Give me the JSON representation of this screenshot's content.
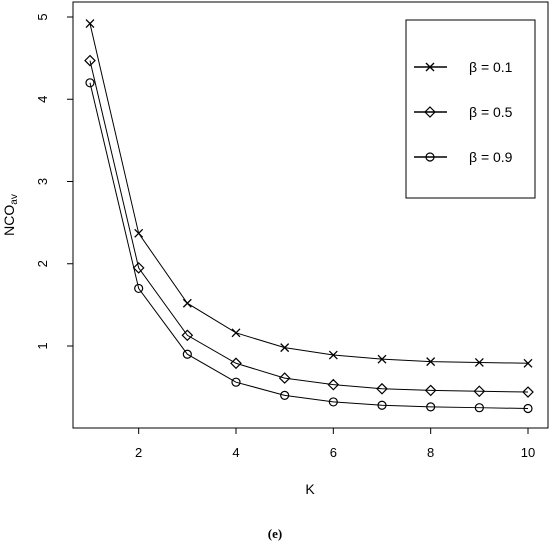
{
  "chart_data": {
    "type": "line",
    "title": "",
    "xlabel": "K",
    "ylabel_main": "NCO",
    "ylabel_sub": "av",
    "x": [
      1,
      2,
      3,
      4,
      5,
      6,
      7,
      8,
      9,
      10
    ],
    "xlim": [
      0.7,
      10.3
    ],
    "ylim": [
      0.25,
      5.0
    ],
    "xticks": [
      2,
      4,
      6,
      8,
      10
    ],
    "yticks": [
      1,
      2,
      3,
      4,
      5
    ],
    "grid": false,
    "legend_position": "top-right",
    "series": [
      {
        "name": "β = 0.1",
        "marker": "cross",
        "values": [
          4.92,
          2.37,
          1.52,
          1.16,
          0.98,
          0.89,
          0.84,
          0.81,
          0.8,
          0.79
        ]
      },
      {
        "name": "β = 0.5",
        "marker": "diamond",
        "values": [
          4.47,
          1.95,
          1.13,
          0.79,
          0.61,
          0.53,
          0.48,
          0.46,
          0.45,
          0.44
        ]
      },
      {
        "name": "β = 0.9",
        "marker": "circle",
        "values": [
          4.2,
          1.7,
          0.9,
          0.56,
          0.4,
          0.32,
          0.28,
          0.26,
          0.25,
          0.24
        ]
      }
    ],
    "caption": "(e)"
  }
}
